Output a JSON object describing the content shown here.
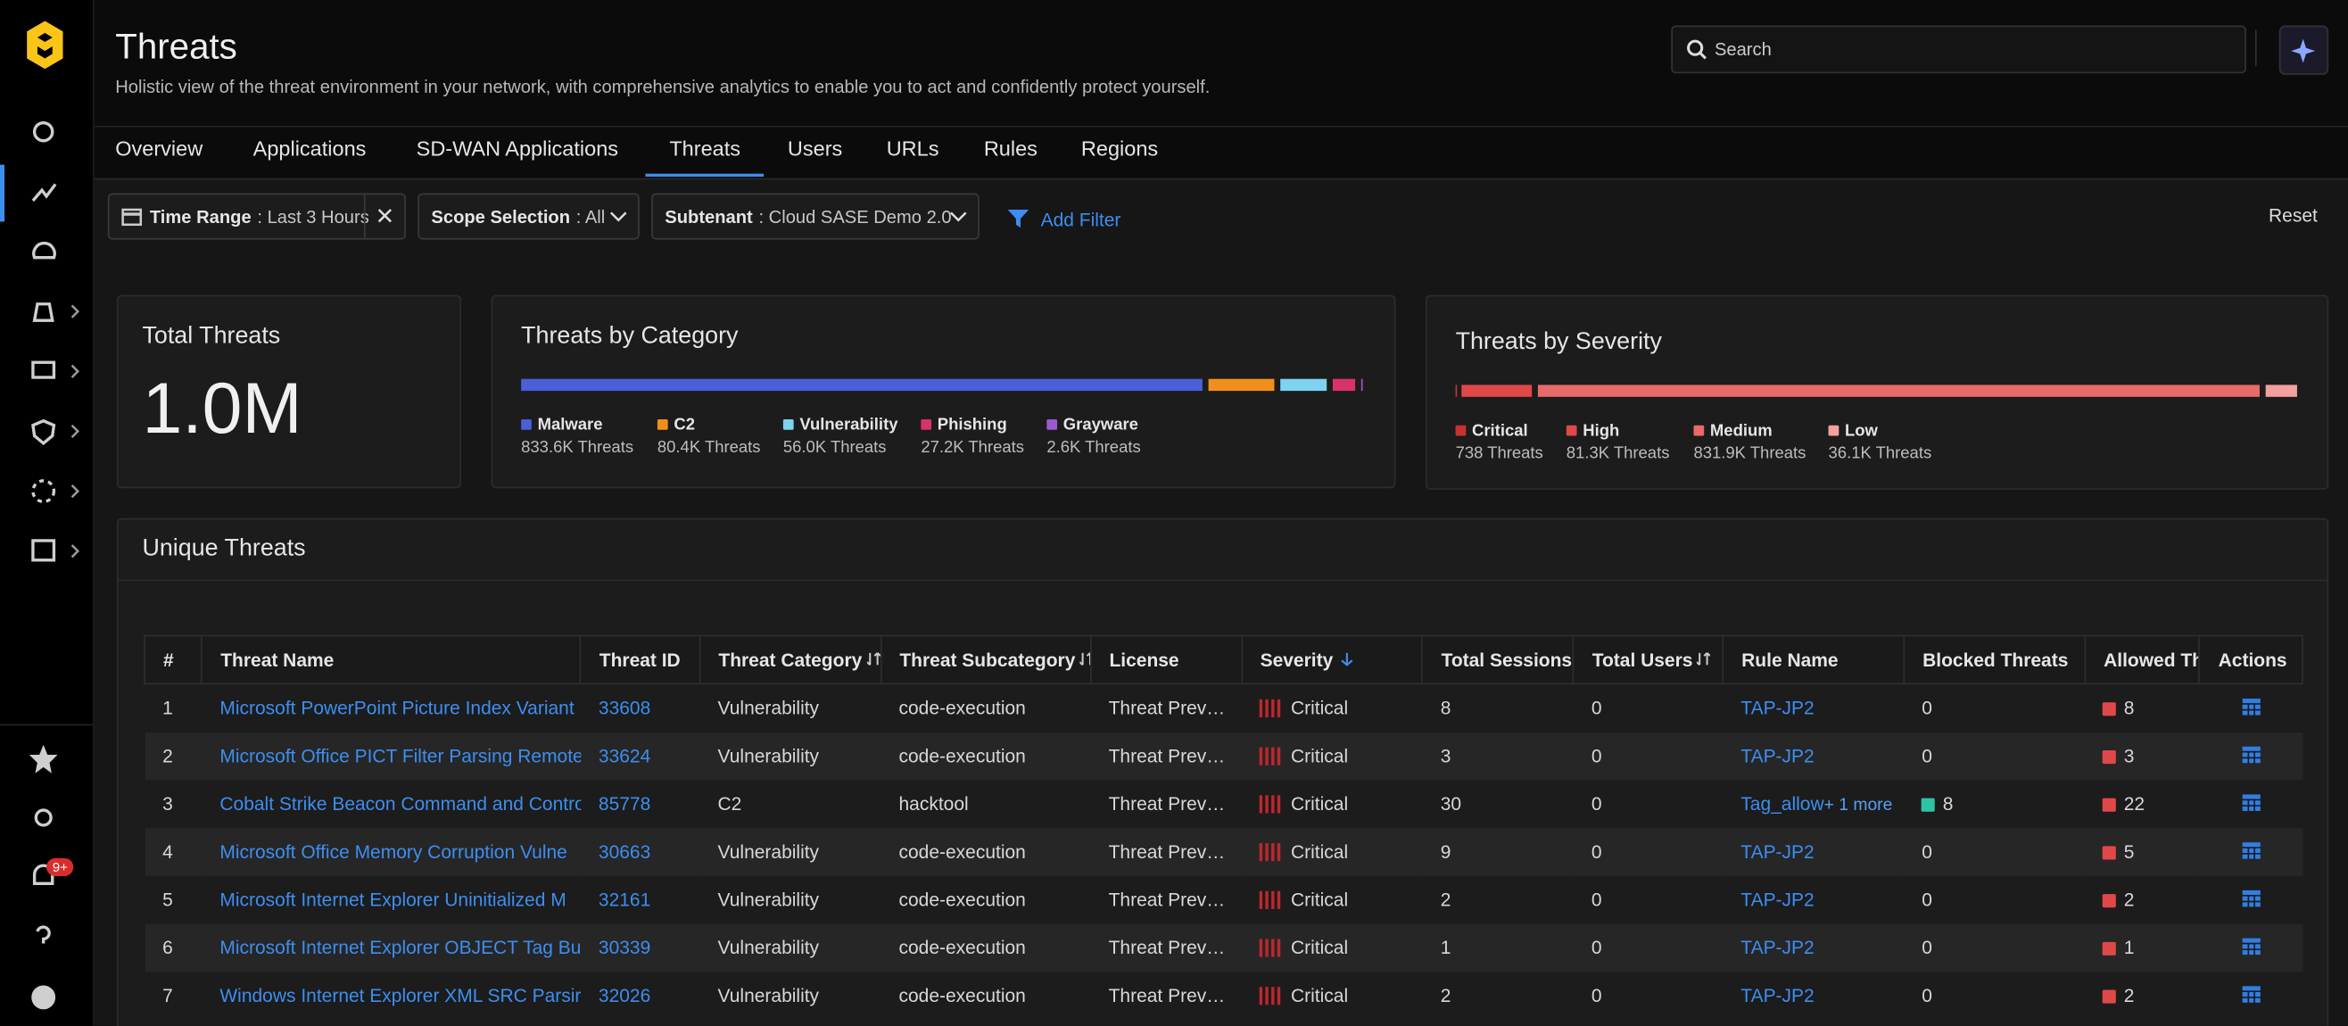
{
  "header": {
    "title": "Threats",
    "subtitle": "Holistic view of the threat environment in your network, with comprehensive analytics to enable you to act and confidently protect yourself.",
    "search_placeholder": "Search"
  },
  "nav": {
    "notification_badge": "9+"
  },
  "tabs": [
    "Overview",
    "Applications",
    "SD-WAN Applications",
    "Threats",
    "Users",
    "URLs",
    "Rules",
    "Regions"
  ],
  "active_tab": "Threats",
  "filters": [
    {
      "label": "Time Range",
      "value": ": Last 3 Hours"
    },
    {
      "label": "Scope Selection",
      "value": ": All"
    },
    {
      "label": "Subtenant",
      "value": ": Cloud SASE Demo 2.0"
    }
  ],
  "add_filter": "Add Filter",
  "reset": "Reset",
  "total_threats": {
    "title": "Total Threats",
    "value": "1.0M"
  },
  "threats_by_category": {
    "title": "Threats by Category",
    "items": [
      {
        "name": "Malware",
        "value": 833600,
        "label": "833.6K Threats",
        "color": "#4a5fd8"
      },
      {
        "name": "C2",
        "value": 80400,
        "label": "80.4K Threats",
        "color": "#f0901c"
      },
      {
        "name": "Vulnerability",
        "value": 56000,
        "label": "56.0K Threats",
        "color": "#7dd3f0"
      },
      {
        "name": "Phishing",
        "value": 27200,
        "label": "27.2K Threats",
        "color": "#d6336c"
      },
      {
        "name": "Grayware",
        "value": 2600,
        "label": "2.6K Threats",
        "color": "#9b59d0"
      }
    ]
  },
  "threats_by_severity": {
    "title": "Threats by Severity",
    "items": [
      {
        "name": "Critical",
        "value": 738,
        "label": "738 Threats",
        "color": "#c83232"
      },
      {
        "name": "High",
        "value": 81300,
        "label": "81.3K Threats",
        "color": "#e04848"
      },
      {
        "name": "Medium",
        "value": 831900,
        "label": "831.9K Threats",
        "color": "#e86a6a"
      },
      {
        "name": "Low",
        "value": 36100,
        "label": "36.1K Threats",
        "color": "#f4a0a0"
      }
    ]
  },
  "table": {
    "title": "Unique Threats",
    "columns": [
      "#",
      "Threat Name",
      "Threat ID",
      "Threat Category",
      "Threat Subcategory",
      "License",
      "Severity",
      "Total Sessions",
      "Total Users",
      "Rule Name",
      "Blocked Threats",
      "Allowed Threats",
      "Actions"
    ],
    "rows": [
      {
        "num": 1,
        "name": "Microsoft PowerPoint Picture Index Variant",
        "id": "33608",
        "category": "Vulnerability",
        "subcategory": "code-execution",
        "license": "Threat Prev…",
        "severity": "Critical",
        "sessions": 8,
        "users": 0,
        "rule": "TAP-JP2",
        "blocked": 0,
        "allowed": 8
      },
      {
        "num": 2,
        "name": "Microsoft Office PICT Filter Parsing Remote",
        "id": "33624",
        "category": "Vulnerability",
        "subcategory": "code-execution",
        "license": "Threat Prev…",
        "severity": "Critical",
        "sessions": 3,
        "users": 0,
        "rule": "TAP-JP2",
        "blocked": 0,
        "allowed": 3
      },
      {
        "num": 3,
        "name": "Cobalt Strike Beacon Command and Control",
        "id": "85778",
        "category": "C2",
        "subcategory": "hacktool",
        "license": "Threat Prev…",
        "severity": "Critical",
        "sessions": 30,
        "users": 0,
        "rule": "Tag_allow",
        "rule_more": "+ 1 more",
        "blocked": 8,
        "allowed": 22
      },
      {
        "num": 4,
        "name": "Microsoft Office Memory Corruption Vulne",
        "id": "30663",
        "category": "Vulnerability",
        "subcategory": "code-execution",
        "license": "Threat Prev…",
        "severity": "Critical",
        "sessions": 9,
        "users": 0,
        "rule": "TAP-JP2",
        "blocked": 0,
        "allowed": 5
      },
      {
        "num": 5,
        "name": "Microsoft Internet Explorer Uninitialized M",
        "id": "32161",
        "category": "Vulnerability",
        "subcategory": "code-execution",
        "license": "Threat Prev…",
        "severity": "Critical",
        "sessions": 2,
        "users": 0,
        "rule": "TAP-JP2",
        "blocked": 0,
        "allowed": 2
      },
      {
        "num": 6,
        "name": "Microsoft Internet Explorer OBJECT Tag Bu",
        "id": "30339",
        "category": "Vulnerability",
        "subcategory": "code-execution",
        "license": "Threat Prev…",
        "severity": "Critical",
        "sessions": 1,
        "users": 0,
        "rule": "TAP-JP2",
        "blocked": 0,
        "allowed": 1
      },
      {
        "num": 7,
        "name": "Windows Internet Explorer XML SRC Parsir",
        "id": "32026",
        "category": "Vulnerability",
        "subcategory": "code-execution",
        "license": "Threat Prev…",
        "severity": "Critical",
        "sessions": 2,
        "users": 0,
        "rule": "TAP-JP2",
        "blocked": 0,
        "allowed": 2
      }
    ]
  }
}
